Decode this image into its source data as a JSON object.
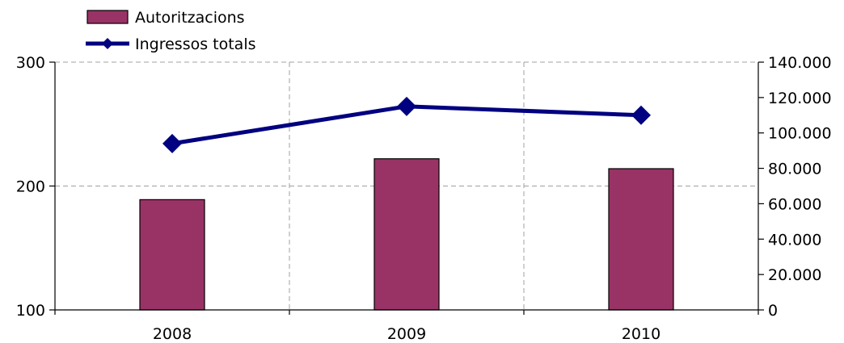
{
  "chart_data": {
    "type": "bar+line",
    "categories": [
      "2008",
      "2009",
      "2010"
    ],
    "series": [
      {
        "name": "Autoritzacions",
        "type": "bar",
        "axis": "left",
        "color": "#993366",
        "values": [
          189,
          222,
          214
        ]
      },
      {
        "name": "Ingressos totals",
        "type": "line",
        "axis": "right",
        "color": "#000080",
        "marker": "diamond",
        "values": [
          94000,
          115000,
          110000
        ]
      }
    ],
    "y_left": {
      "min": 100,
      "max": 300,
      "ticks": [
        100,
        200,
        300
      ],
      "tick_labels": [
        "100",
        "200",
        "300"
      ]
    },
    "y_right": {
      "min": 0,
      "max": 140000,
      "ticks": [
        0,
        20000,
        40000,
        60000,
        80000,
        100000,
        120000,
        140000
      ],
      "tick_labels": [
        "0",
        "20.000",
        "40.000",
        "60.000",
        "80.000",
        "100.000",
        "120.000",
        "140.000"
      ]
    },
    "grid": "dashed",
    "legend_position": "top-left"
  }
}
